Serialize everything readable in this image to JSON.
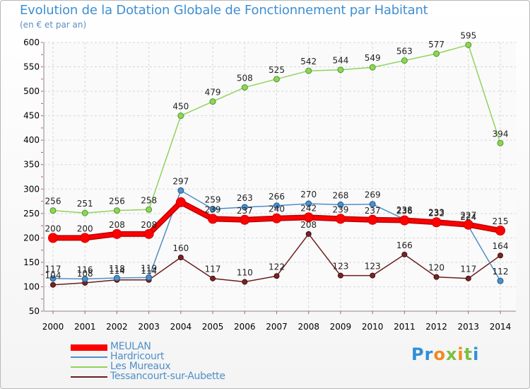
{
  "title": "Evolution de la Dotation Globale de Fonctionnement par Habitant",
  "subtitle": "(en € et par an)",
  "logo": {
    "text": "Proxiti"
  },
  "chart_data": {
    "type": "line",
    "title": "Evolution de la Dotation Globale de Fonctionnement par Habitant",
    "subtitle": "(en € et par an)",
    "x": [
      "2000",
      "2001",
      "2002",
      "2003",
      "2004",
      "2005",
      "2006",
      "2007",
      "2008",
      "2009",
      "2010",
      "2011",
      "2012",
      "2013",
      "2014"
    ],
    "ylim": [
      50,
      600
    ],
    "yticks": [
      "50",
      "100",
      "150",
      "200",
      "250",
      "300",
      "350",
      "400",
      "450",
      "500",
      "550",
      "600"
    ],
    "grid": true,
    "legend_position": "bottom-left",
    "series": [
      {
        "name": "MEULAN",
        "color": "#ff0000",
        "values": [
          200,
          200,
          208,
          208,
          273,
          239,
          237,
          240,
          242,
          239,
          237,
          236,
          232,
          227,
          215
        ],
        "labels": [
          "200",
          "200",
          "208",
          "208",
          "",
          "239",
          "237",
          "240",
          "242",
          "239",
          "237",
          "236",
          "232",
          "227",
          "215"
        ]
      },
      {
        "name": "Hardricourt",
        "color": "#4f8fc8",
        "values": [
          117,
          116,
          118,
          119,
          297,
          259,
          263,
          266,
          270,
          268,
          269,
          238,
          233,
          224,
          112
        ],
        "labels": [
          "117",
          "116",
          "118",
          "119",
          "297",
          "259",
          "263",
          "266",
          "270",
          "268",
          "269",
          "238",
          "233",
          "224",
          "112"
        ]
      },
      {
        "name": "Les Mureaux",
        "color": "#8fd45a",
        "values": [
          256,
          251,
          256,
          258,
          450,
          479,
          508,
          525,
          542,
          544,
          549,
          563,
          577,
          595,
          394
        ],
        "labels": [
          "256",
          "251",
          "256",
          "258",
          "450",
          "479",
          "508",
          "525",
          "542",
          "544",
          "549",
          "563",
          "577",
          "595",
          "394"
        ]
      },
      {
        "name": "Tessancourt-sur-Aubette",
        "color": "#6a1e1e",
        "values": [
          104,
          108,
          114,
          114,
          160,
          117,
          110,
          122,
          208,
          123,
          123,
          166,
          120,
          117,
          164
        ],
        "labels": [
          "104",
          "108",
          "114",
          "114",
          "160",
          "117",
          "110",
          "122",
          "208",
          "123",
          "123",
          "166",
          "120",
          "117",
          "164"
        ]
      }
    ]
  }
}
